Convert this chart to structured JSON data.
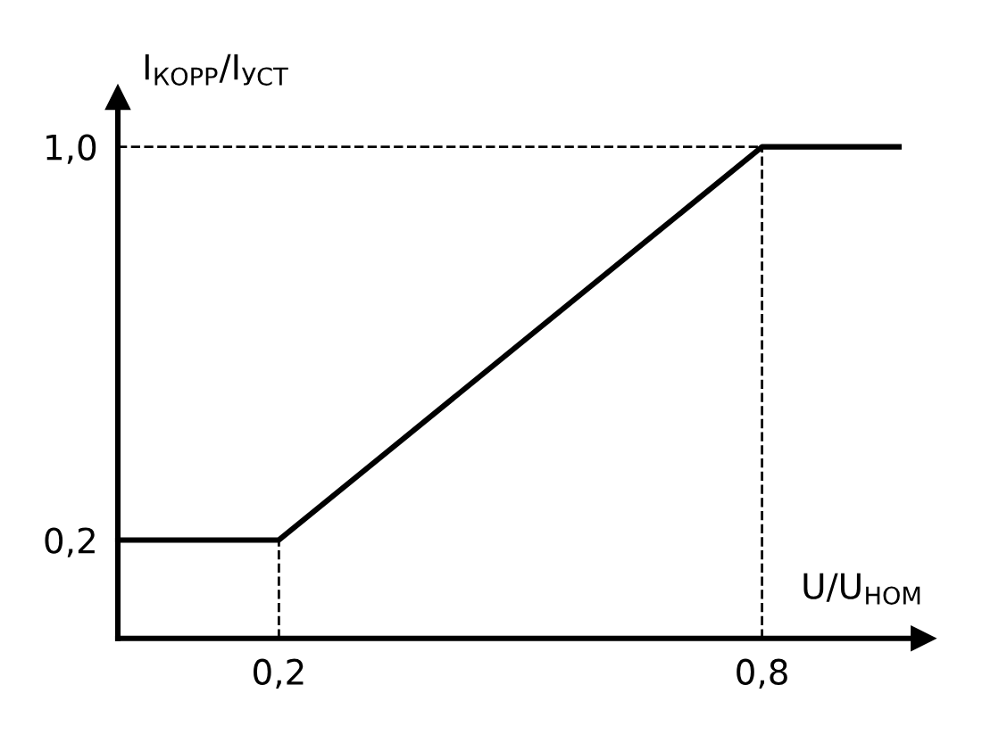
{
  "chart_data": {
    "type": "line",
    "xlabel": "U/U$_{НОМ}$",
    "ylabel": "I$_{КОРР}$/I$_{УСТ}$",
    "x": [
      0,
      0.2,
      0.8,
      0.97
    ],
    "series": [
      {
        "color": "#000000",
        "values": [
          0.2,
          0.2,
          1.0,
          1.0
        ]
      }
    ],
    "xlim": [
      0,
      1.0
    ],
    "ylim": [
      0,
      1.1
    ],
    "xticks": [
      {
        "value": 0.2,
        "label": "0,2"
      },
      {
        "value": 0.8,
        "label": "0,8"
      }
    ],
    "yticks": [
      {
        "value": 0.2,
        "label": "0,2"
      },
      {
        "value": 1.0,
        "label": "1,0"
      }
    ],
    "ref_lines": [
      {
        "axis": "x",
        "value": 0.2,
        "line_style": "dashed",
        "color": "#000000"
      },
      {
        "axis": "x",
        "value": 0.8,
        "line_style": "dashed",
        "color": "#000000"
      },
      {
        "axis": "y",
        "value": 1.0,
        "line_style": "dashed",
        "color": "#000000"
      }
    ],
    "grid": false,
    "legend": false,
    "marker": "none",
    "line_style": "solid"
  }
}
